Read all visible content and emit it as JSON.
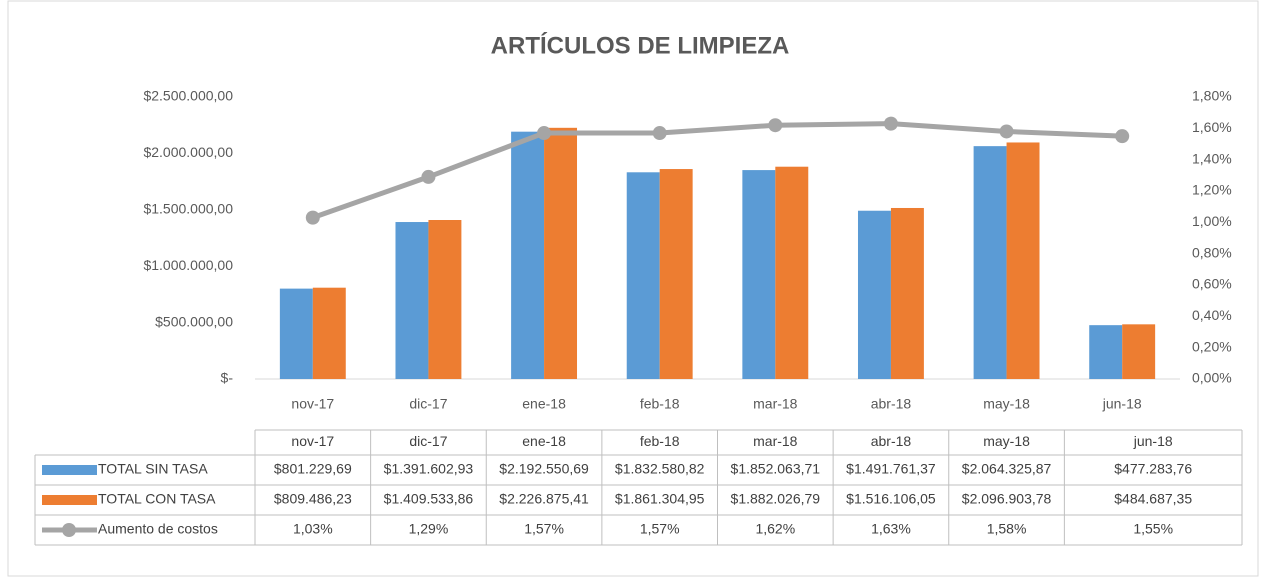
{
  "chart_data": {
    "type": "bar-line",
    "title": "ARTÍCULOS DE LIMPIEZA",
    "categories": [
      "nov-17",
      "dic-17",
      "ene-18",
      "feb-18",
      "mar-18",
      "abr-18",
      "may-18",
      "jun-18"
    ],
    "series": [
      {
        "name": "TOTAL SIN TASA",
        "color": "#5b9bd5",
        "type": "bar",
        "values": [
          801229.69,
          1391602.93,
          2192550.69,
          1832580.82,
          1852063.71,
          1491761.37,
          2064325.87,
          477283.76
        ],
        "value_labels": [
          "$801.229,69",
          "$1.391.602,93",
          "$2.192.550,69",
          "$1.832.580,82",
          "$1.852.063,71",
          "$1.491.761,37",
          "$2.064.325,87",
          "$477.283,76"
        ]
      },
      {
        "name": "TOTAL CON TASA",
        "color": "#ed7d31",
        "type": "bar",
        "values": [
          809486.23,
          1409533.86,
          2226875.41,
          1861304.95,
          1882026.79,
          1516106.05,
          2096903.78,
          484687.35
        ],
        "value_labels": [
          "$809.486,23",
          "$1.409.533,86",
          "$2.226.875,41",
          "$1.861.304,95",
          "$1.882.026,79",
          "$1.516.106,05",
          "$2.096.903,78",
          "$484.687,35"
        ]
      },
      {
        "name": "Aumento de costos",
        "color": "#a5a5a5",
        "type": "line",
        "axis": "y2",
        "values": [
          1.03,
          1.29,
          1.57,
          1.57,
          1.62,
          1.63,
          1.58,
          1.55
        ],
        "value_labels": [
          "1,03%",
          "1,29%",
          "1,57%",
          "1,57%",
          "1,62%",
          "1,63%",
          "1,58%",
          "1,55%"
        ]
      }
    ],
    "ylim": [
      0,
      2500000
    ],
    "yticks": [
      {
        "value": 0,
        "label": "$-"
      },
      {
        "value": 500000,
        "label": "$500.000,00"
      },
      {
        "value": 1000000,
        "label": "$1.000.000,00"
      },
      {
        "value": 1500000,
        "label": "$1.500.000,00"
      },
      {
        "value": 2000000,
        "label": "$2.000.000,00"
      },
      {
        "value": 2500000,
        "label": "$2.500.000,00"
      }
    ],
    "y2lim": [
      0,
      1.8
    ],
    "y2ticks": [
      {
        "value": 0,
        "label": "0,00%"
      },
      {
        "value": 0.2,
        "label": "0,20%"
      },
      {
        "value": 0.4,
        "label": "0,40%"
      },
      {
        "value": 0.6,
        "label": "0,60%"
      },
      {
        "value": 0.8,
        "label": "0,80%"
      },
      {
        "value": 1.0,
        "label": "1,00%"
      },
      {
        "value": 1.2,
        "label": "1,20%"
      },
      {
        "value": 1.4,
        "label": "1,40%"
      },
      {
        "value": 1.6,
        "label": "1,60%"
      },
      {
        "value": 1.8,
        "label": "1,80%"
      }
    ],
    "grid": false,
    "data_table": true
  }
}
